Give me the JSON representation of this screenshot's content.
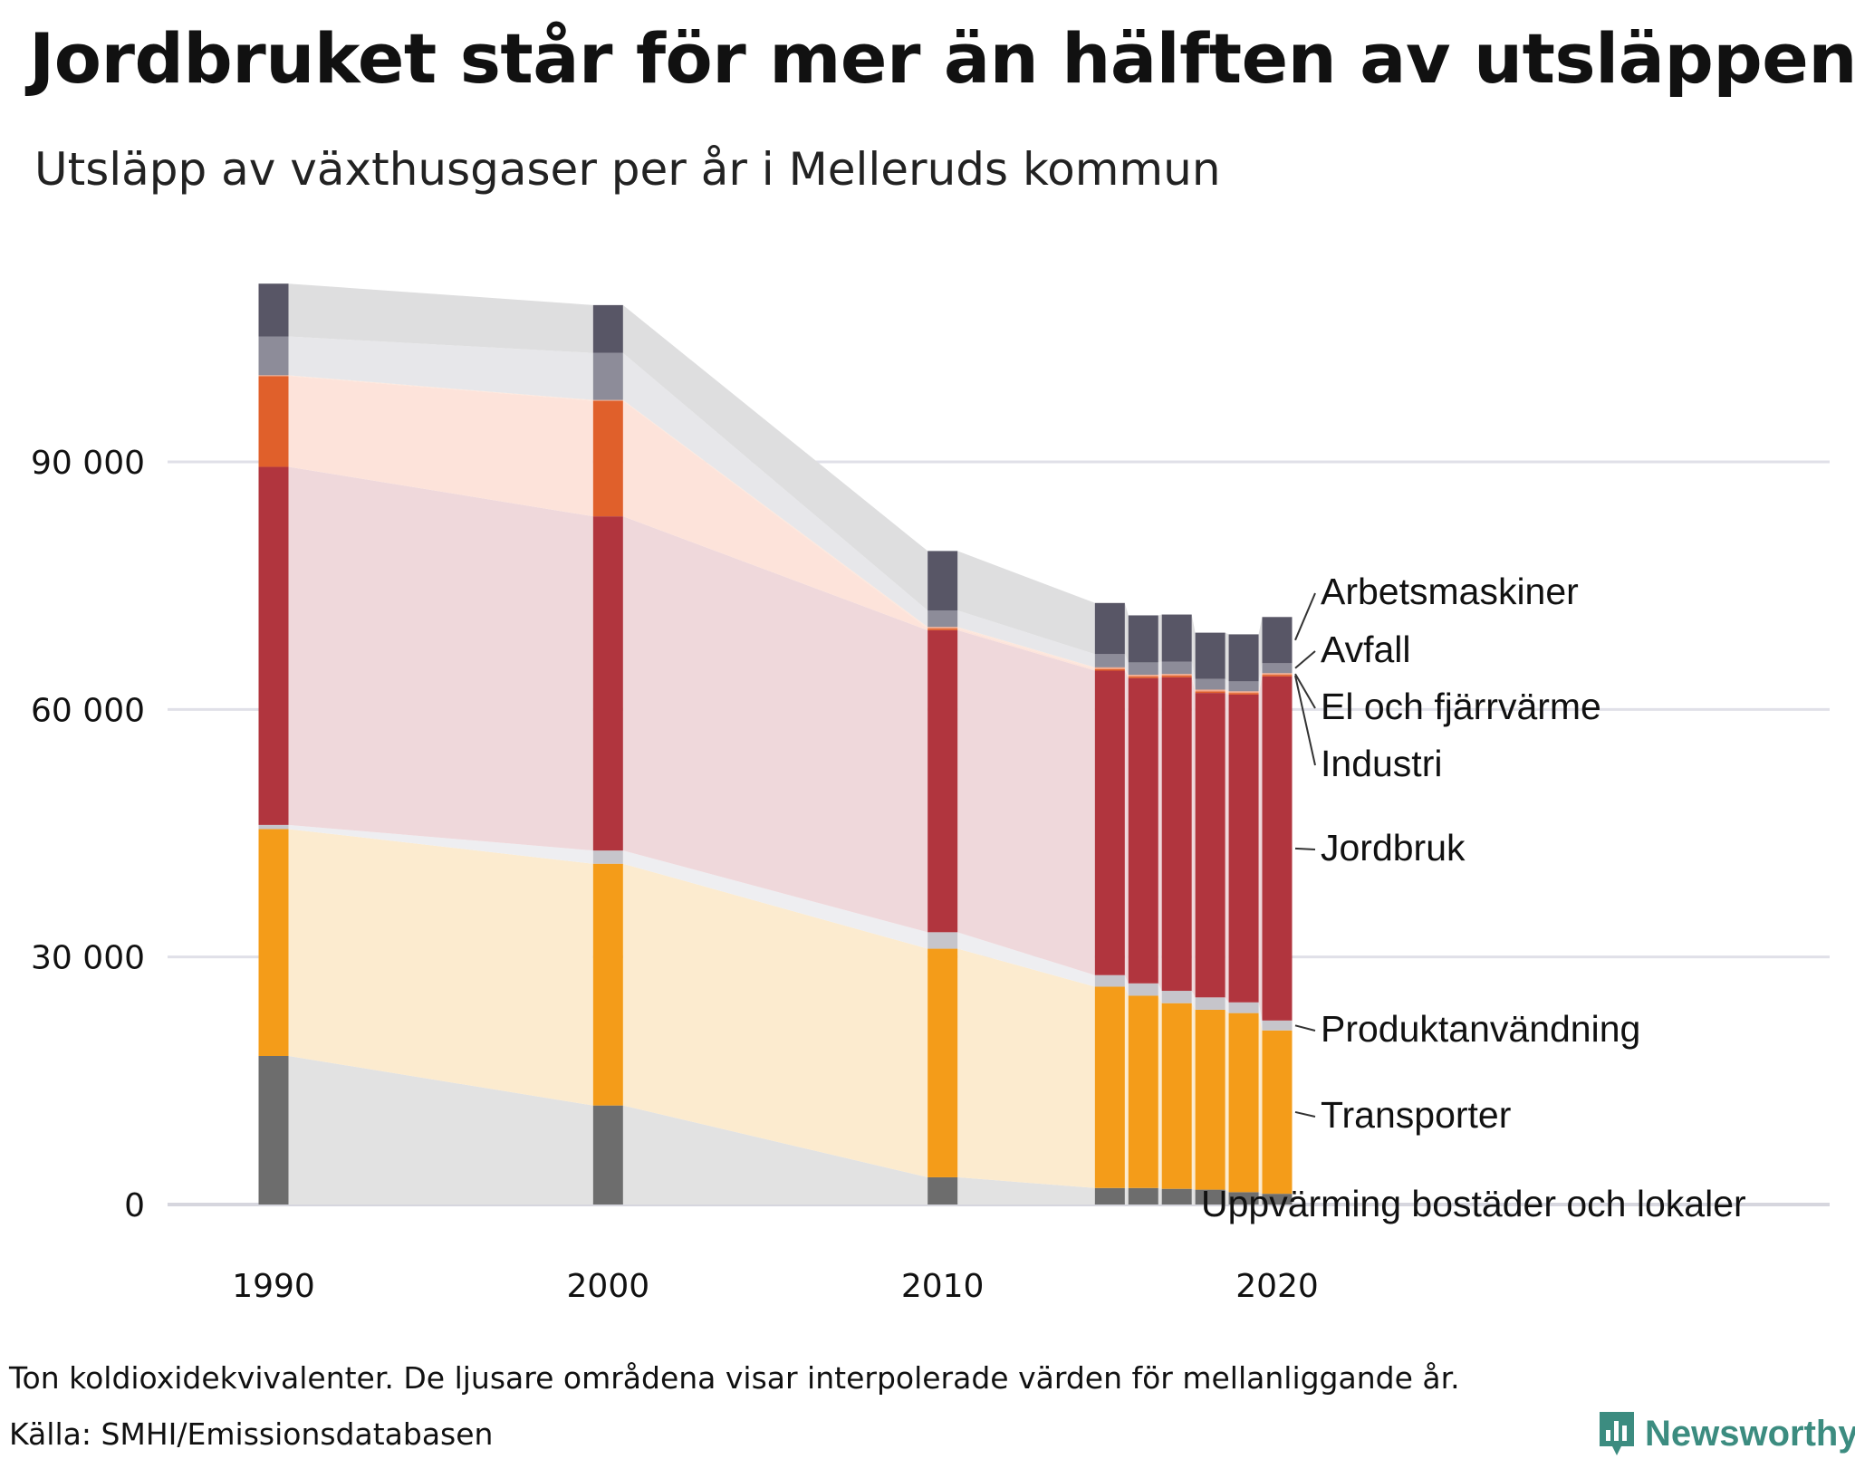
{
  "header": {
    "title": "Jordbruket står för mer än hälften av utsläppen",
    "subtitle": "Utsläpp av växthusgaser per år i Melleruds kommun"
  },
  "footer": {
    "note": "Ton koldioxidekvivalenter. De ljusare områdena visar interpolerade värden för mellanliggande år.",
    "source": "Källa: SMHI/Emissionsdatabasen"
  },
  "brand": {
    "name": "Newsworthy",
    "icon": "bar-chart-logo-icon",
    "color": "#3c8c80"
  },
  "chart_data": {
    "type": "bar",
    "stacked": true,
    "x": [
      1990,
      2000,
      2010,
      2015,
      2016,
      2017,
      2018,
      2019,
      2020
    ],
    "xticks": [
      {
        "value": 1990,
        "label": "1990"
      },
      {
        "value": 2000,
        "label": "2000"
      },
      {
        "value": 2010,
        "label": "2010"
      },
      {
        "value": 2020,
        "label": "2020"
      }
    ],
    "yticks": [
      {
        "value": 0,
        "label": "0"
      },
      {
        "value": 30000,
        "label": "30 000"
      },
      {
        "value": 60000,
        "label": "60 000"
      },
      {
        "value": 90000,
        "label": "90 000"
      }
    ],
    "ylim": [
      0,
      112000
    ],
    "xlim": [
      1990,
      2020
    ],
    "grid": true,
    "interpolated_areas": true,
    "series": [
      {
        "name": "Uppvärming bostäder och lokaler",
        "color": "#6d6d6d",
        "area_color": "#e2e2e2",
        "values": [
          18000,
          12000,
          3300,
          2000,
          2000,
          1900,
          1800,
          1500,
          1300
        ]
      },
      {
        "name": "Transporter",
        "color": "#f49c19",
        "area_color": "#fcebcf",
        "values": [
          27500,
          29300,
          27700,
          24400,
          23300,
          22500,
          21800,
          21700,
          19800
        ]
      },
      {
        "name": "Produktanvändning",
        "color": "#c6c5cb",
        "area_color": "#eeeef1",
        "values": [
          500,
          1600,
          2000,
          1400,
          1500,
          1500,
          1500,
          1300,
          1200
        ]
      },
      {
        "name": "Jordbruk",
        "color": "#b1353e",
        "area_color": "#efd8db",
        "values": [
          43400,
          40500,
          36600,
          36900,
          37000,
          38000,
          36900,
          37300,
          41700
        ]
      },
      {
        "name": "Industri",
        "color": "#e0602b",
        "area_color": "#fde3da",
        "values": [
          11000,
          14000,
          200,
          200,
          200,
          200,
          200,
          200,
          200
        ]
      },
      {
        "name": "El och fjärrvärme",
        "color": "#f4a98a",
        "area_color": "#fde7dc",
        "values": [
          100,
          100,
          200,
          200,
          200,
          200,
          200,
          200,
          200
        ]
      },
      {
        "name": "Avfall",
        "color": "#8d8c99",
        "area_color": "#e7e7ea",
        "values": [
          4700,
          5700,
          2000,
          1600,
          1500,
          1500,
          1300,
          1200,
          1200
        ]
      },
      {
        "name": "Arbetsmaskiner",
        "color": "#585666",
        "area_color": "#dededf",
        "values": [
          6400,
          5800,
          7200,
          6200,
          5700,
          5700,
          5600,
          5700,
          5600
        ]
      }
    ]
  }
}
